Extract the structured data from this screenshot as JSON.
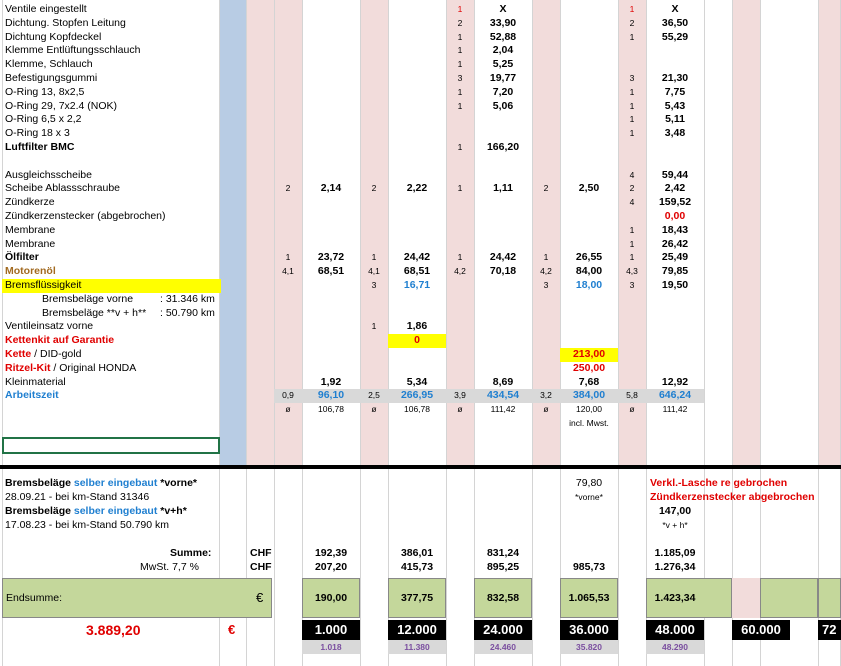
{
  "rows": [
    {
      "label": "Ventile eingestellt",
      "q3": "1",
      "v3": "X",
      "q5": "1",
      "v5": "X",
      "q3red": true,
      "q5red": true
    },
    {
      "label": "Dichtung. Stopfen Leitung",
      "q3": "2",
      "v3": "33,90",
      "q5": "2",
      "v5": "36,50"
    },
    {
      "label": "Dichtung Kopfdeckel",
      "q3": "1",
      "v3": "52,88",
      "q5": "1",
      "v5": "55,29"
    },
    {
      "label": "Klemme Entlüftungsschlauch",
      "q3": "1",
      "v3": "2,04"
    },
    {
      "label": "Klemme, Schlauch",
      "q3": "1",
      "v3": "5,25"
    },
    {
      "label": "Befestigungsgummi",
      "q3": "3",
      "v3": "19,77",
      "q5": "3",
      "v5": "21,30"
    },
    {
      "label": "O-Ring 13, 8x2,5",
      "q3": "1",
      "v3": "7,20",
      "q5": "1",
      "v5": "7,75"
    },
    {
      "label": "O-Ring 29, 7x2.4 (NOK)",
      "q3": "1",
      "v3": "5,06",
      "q5": "1",
      "v5": "5,43"
    },
    {
      "label": "O-Ring  6,5 x 2,2",
      "q5": "1",
      "v5": "5,11"
    },
    {
      "label": "O-Ring  18 x 3",
      "q5": "1",
      "v5": "3,48"
    },
    {
      "label": "Luftfilter BMC",
      "bold": true,
      "q3": "1",
      "v3": "166,20"
    },
    {
      "label": ""
    },
    {
      "label": "Ausgleichsscheibe",
      "q5": "4",
      "v5": "59,44"
    },
    {
      "label": "Scheibe Ablassschraube",
      "q1": "2",
      "v1": "2,14",
      "q2": "2",
      "v2": "2,22",
      "q3": "1",
      "v3": "1,11",
      "q4": "2",
      "v4": "2,50",
      "q5": "2",
      "v5": "2,42"
    },
    {
      "label": "Zündkerze",
      "q5": "4",
      "v5": "159,52"
    },
    {
      "label": "Zündkerzenstecker (abgebrochen)",
      "v5": "0,00",
      "v5red": true
    },
    {
      "label": "Membrane",
      "q5": "1",
      "v5": "18,43"
    },
    {
      "label": "Membrane",
      "q5": "1",
      "v5": "26,42"
    },
    {
      "label": "Ölfilter",
      "bold": true,
      "q1": "1",
      "v1": "23,72",
      "q2": "1",
      "v2": "24,42",
      "q3": "1",
      "v3": "24,42",
      "q4": "1",
      "v4": "26,55",
      "q5": "1",
      "v5": "25,49"
    },
    {
      "label": "Motorenöl",
      "bold": true,
      "brown": true,
      "q1": "4,1",
      "v1": "68,51",
      "q2": "4,1",
      "v2": "68,51",
      "q3": "4,2",
      "v3": "70,18",
      "q4": "4,2",
      "v4": "84,00",
      "q5": "4,3",
      "v5": "79,85"
    },
    {
      "label": "Bremsflüssigkeit",
      "yellow": true,
      "q2": "3",
      "v2": "16,71",
      "v2blue": true,
      "q4": "3",
      "v4": "18,00",
      "v4blue": true,
      "q5": "3",
      "v5": "19,50"
    },
    {
      "label": "Bremsbeläge vorne",
      "label2": ": 31.346 km",
      "indent": true
    },
    {
      "label": "Bremsbeläge **v + h**",
      "label2": ": 50.790 km",
      "indent": true
    },
    {
      "label": "Ventileinsatz vorne",
      "q2": "1",
      "v2": "1,86"
    },
    {
      "label": "Kettenkit auf Garantie",
      "bold": true,
      "red": true,
      "v2": "0",
      "v2yellow": true,
      "v2red": true
    },
    {
      "label": "Kette",
      "labelrest": " / DID-gold",
      "bold": true,
      "red": true,
      "v4": "213,00",
      "v4yellow": true,
      "v4red": true
    },
    {
      "label": "Ritzel-Kit",
      "labelrest": " / Original HONDA",
      "bold": true,
      "red": true,
      "v4": "250,00",
      "v4red": true
    },
    {
      "label": "Kleinmaterial",
      "v1": "1,92",
      "v2": "5,34",
      "v3": "8,69",
      "v4": "7,68",
      "v5": "12,92"
    },
    {
      "label": "Arbeitszeit",
      "bold": true,
      "blue": true,
      "grey": true,
      "q1": "0,9",
      "v1": "96,10",
      "q2": "2,5",
      "v2": "266,95",
      "q3": "3,9",
      "v3": "434,54",
      "q4": "3,2",
      "v4": "384,00",
      "q5": "5,8",
      "v5": "646,24",
      "vblue": true
    },
    {
      "label": "",
      "q1": "ø",
      "v1": "106,78",
      "q2": "ø",
      "v2": "106,78",
      "q3": "ø",
      "v3": "111,42",
      "q4": "ø",
      "v4": "120,00",
      "q5": "ø",
      "v5": "111,42",
      "small": true
    },
    {
      "label": "",
      "v4": "incl. Mwst.",
      "small": true
    }
  ],
  "lower": {
    "brems1_a": "Bremsbeläge ",
    "brems1_b": "selber eingebaut ",
    "brems1_c": "*vorne*",
    "brems1_date": "28.09.21 - bei km-Stand 31346",
    "brems2_a": "Bremsbeläge ",
    "brems2_b": "selber eingebaut ",
    "brems2_c": "*v+h*",
    "brems2_date": "17.08.23 - bei km-Stand 50.790 km",
    "c4_top": "79,80",
    "c4_sub": "*vorne*",
    "c5_val": "147,00",
    "c5_sub": "*v + h*",
    "note1": "Verkl.-Lasche re gebrochen",
    "note2": "Zündkerzenstecker abgebrochen",
    "summe_label": "Summe:",
    "summe_cur": "CHF",
    "summe": [
      "192,39",
      "386,01",
      "831,24",
      "",
      "1.185,09"
    ],
    "mwst_label": "MwSt. 7,7 %",
    "mwst_cur": "CHF",
    "mwst": [
      "207,20",
      "415,73",
      "895,25",
      "985,73",
      "1.276,34"
    ],
    "end_label": "Endsumme:",
    "end_cur": "€",
    "end": [
      "190,00",
      "377,75",
      "832,58",
      "1.065,53",
      "1.423,34"
    ],
    "total": "3.889,20",
    "total_cur": "€",
    "km": [
      "1.000",
      "12.000",
      "24.000",
      "36.000",
      "48.000",
      "60.000",
      "72"
    ],
    "km_actual": [
      "1.018",
      "11.380",
      "24.460",
      "35.820",
      "48.290"
    ]
  }
}
